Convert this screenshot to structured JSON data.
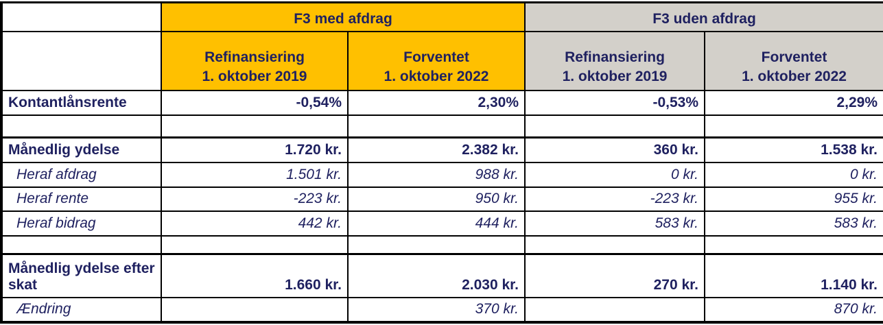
{
  "colors": {
    "accent_yellow": "#FFC000",
    "header_gray": "#D3D0CA",
    "text_navy": "#1F2160",
    "border_black": "#000000"
  },
  "groups": [
    {
      "label": "F3 med afdrag"
    },
    {
      "label": "F3 uden afdrag"
    }
  ],
  "columns": [
    {
      "line1": "Refinansiering",
      "line2": "1. oktober 2019",
      "group": "F3 med afdrag"
    },
    {
      "line1": "Forventet",
      "line2": "1. oktober 2022",
      "group": "F3 med afdrag"
    },
    {
      "line1": "Refinansiering",
      "line2": "1. oktober 2019",
      "group": "F3 uden afdrag"
    },
    {
      "line1": "Forventet",
      "line2": "1. oktober 2022",
      "group": "F3 uden afdrag"
    }
  ],
  "rows": [
    {
      "label": "Kontantlånsrente",
      "style": "bold",
      "height": "normal",
      "sep_above": false,
      "values": [
        "-0,54%",
        "2,30%",
        "-0,53%",
        "2,29%"
      ]
    },
    {
      "label": "",
      "style": "bold",
      "height": "spacer",
      "sep_above": false,
      "values": [
        "",
        "",
        "",
        ""
      ]
    },
    {
      "label": "Månedlig ydelse",
      "style": "bold",
      "height": "normal",
      "sep_above": true,
      "values": [
        "1.720 kr.",
        "2.382 kr.",
        "360 kr.",
        "1.538 kr."
      ]
    },
    {
      "label": "Heraf afdrag",
      "style": "italic",
      "height": "normal",
      "sep_above": false,
      "values": [
        "1.501 kr.",
        "988 kr.",
        "0 kr.",
        "0 kr."
      ]
    },
    {
      "label": "Heraf rente",
      "style": "italic",
      "height": "normal",
      "sep_above": false,
      "values": [
        "-223 kr.",
        "950 kr.",
        "-223 kr.",
        "955 kr."
      ]
    },
    {
      "label": "Heraf bidrag",
      "style": "italic",
      "height": "normal",
      "sep_above": false,
      "values": [
        "442 kr.",
        "444 kr.",
        "583 kr.",
        "583 kr."
      ]
    },
    {
      "label": "",
      "style": "bold",
      "height": "spacer2",
      "sep_above": false,
      "values": [
        "",
        "",
        "",
        ""
      ]
    },
    {
      "label": "Månedlig ydelse efter skat",
      "style": "bold",
      "height": "tall",
      "sep_above": true,
      "values": [
        "1.660 kr.",
        "2.030 kr.",
        "270 kr.",
        "1.140 kr."
      ]
    },
    {
      "label": "Ændring",
      "style": "italic",
      "height": "normal",
      "sep_above": false,
      "values": [
        "",
        "370 kr.",
        "",
        "870 kr."
      ]
    }
  ]
}
